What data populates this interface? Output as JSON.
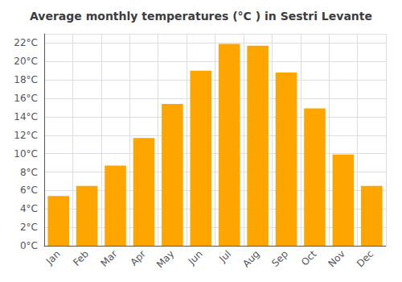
{
  "chart_data": {
    "type": "bar",
    "title": "Average monthly temperatures (°C ) in Sestri Levante",
    "categories": [
      "Jan",
      "Feb",
      "Mar",
      "Apr",
      "May",
      "Jun",
      "Jul",
      "Aug",
      "Sep",
      "Oct",
      "Nov",
      "Dec"
    ],
    "values": [
      5.4,
      6.5,
      8.7,
      11.7,
      15.4,
      19.0,
      21.9,
      21.7,
      18.8,
      14.9,
      9.9,
      6.5
    ],
    "color": "#FFA500",
    "ylim": [
      0,
      23
    ],
    "yticks": [
      {
        "value": 0,
        "label": "0°C"
      },
      {
        "value": 2,
        "label": "2°C"
      },
      {
        "value": 4,
        "label": "4°C"
      },
      {
        "value": 6,
        "label": "6°C"
      },
      {
        "value": 8,
        "label": "8°C"
      },
      {
        "value": 10,
        "label": "10°C"
      },
      {
        "value": 12,
        "label": "12°C"
      },
      {
        "value": 14,
        "label": "14°C"
      },
      {
        "value": 16,
        "label": "16°C"
      },
      {
        "value": 18,
        "label": "18°C"
      },
      {
        "value": 20,
        "label": "20°C"
      },
      {
        "value": 22,
        "label": "22°C"
      }
    ],
    "grid": true
  }
}
